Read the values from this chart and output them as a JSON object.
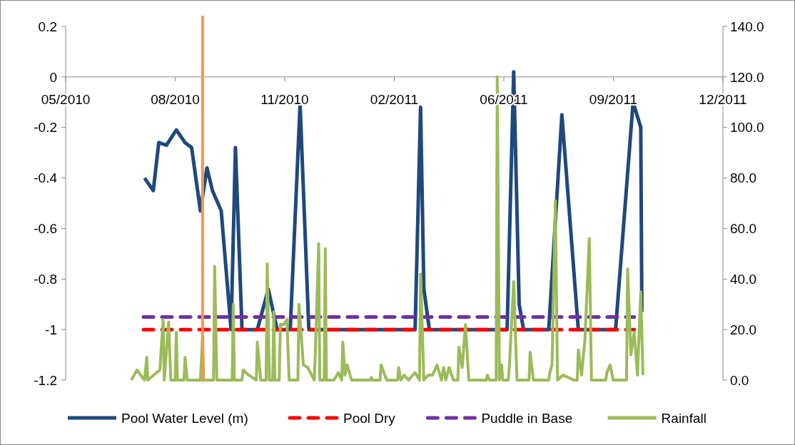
{
  "chart_data": {
    "type": "line",
    "legend": "bottom",
    "xlim": [
      "2010-05-01",
      "2011-12-22"
    ],
    "xticks": [
      {
        "value": "2010-05-01",
        "label": "05/2010"
      },
      {
        "value": "2010-08-09",
        "label": "08/2010"
      },
      {
        "value": "2010-11-17",
        "label": "11/2010"
      },
      {
        "value": "2011-02-25",
        "label": "02/2011"
      },
      {
        "value": "2011-06-05",
        "label": "06/2011"
      },
      {
        "value": "2011-09-13",
        "label": "09/2011"
      },
      {
        "value": "2011-12-22",
        "label": "12/2011"
      }
    ],
    "ylim": [
      -1.2,
      0.2
    ],
    "yticks": [
      -1.2,
      {
        "value": -1,
        "label": "-1"
      },
      -0.8,
      -0.6,
      -0.4,
      -0.2,
      {
        "value": 0,
        "label": "0"
      },
      0.2
    ],
    "y2lim": [
      0,
      140
    ],
    "y2ticks": [
      {
        "value": 0,
        "label": "0.0"
      },
      {
        "value": 20,
        "label": "20.0"
      },
      {
        "value": 40,
        "label": "40.0"
      },
      {
        "value": 60,
        "label": "60.0"
      },
      {
        "value": 80,
        "label": "80.0"
      },
      {
        "value": 100,
        "label": "100.0"
      },
      {
        "value": 120,
        "label": "120.0"
      },
      {
        "value": 140,
        "label": "140.0"
      }
    ],
    "ref_lines": [
      {
        "axis": "x",
        "value": "2010-09-03",
        "color": "#f79646"
      }
    ],
    "series": [
      {
        "name": "Pool Water Level (m)",
        "color": "#1f497d",
        "line_style": "solid",
        "x": [
          "2010-07-12",
          "2010-07-20",
          "2010-07-25",
          "2010-08-01",
          "2010-08-10",
          "2010-08-18",
          "2010-08-24",
          "2010-09-01",
          "2010-09-07",
          "2010-09-12",
          "2010-09-20",
          "2010-09-29",
          "2010-10-03",
          "2010-10-09",
          "2010-10-23",
          "2010-11-02",
          "2010-11-10",
          "2010-11-22",
          "2010-12-01",
          "2010-12-09",
          "2011-03-16",
          "2011-03-21",
          "2011-03-24",
          "2011-03-29",
          "2011-06-08",
          "2011-06-14",
          "2011-06-19",
          "2011-06-23",
          "2011-07-16",
          "2011-07-28",
          "2011-08-12",
          "2011-09-15",
          "2011-10-01",
          "2011-10-08",
          "2011-10-09"
        ],
        "values": [
          -0.4,
          -0.45,
          -0.26,
          -0.27,
          -0.21,
          -0.26,
          -0.28,
          -0.53,
          -0.36,
          -0.45,
          -0.53,
          -1,
          -0.28,
          -1,
          -1,
          -0.84,
          -1,
          -1,
          -0.11,
          -1,
          -1,
          -0.12,
          -0.84,
          -1,
          -1,
          0.02,
          -0.9,
          -1,
          -1,
          -0.15,
          -1,
          -1,
          -0.1,
          -0.2,
          -0.93
        ]
      },
      {
        "name": "Pool Dry",
        "color": "#ff0000",
        "line_style": "dashed",
        "x": [
          "2010-07-11",
          "2011-10-02"
        ],
        "values": [
          -1,
          -1
        ]
      },
      {
        "name": "Puddle in Base",
        "color": "#7030a0",
        "line_style": "dashed",
        "x": [
          "2010-07-11",
          "2011-10-02"
        ],
        "values": [
          -0.95,
          -0.95
        ]
      },
      {
        "name": "Rainfall",
        "color": "#9bbb59",
        "axis": "y2",
        "line_style": "solid",
        "x": [
          "2010-06-30",
          "2010-07-05",
          "2010-07-12",
          "2010-07-14",
          "2010-07-15",
          "2010-07-26",
          "2010-07-29",
          "2010-07-30",
          "2010-08-03",
          "2010-08-05",
          "2010-08-09",
          "2010-08-10",
          "2010-08-11",
          "2010-08-13",
          "2010-08-17",
          "2010-08-18",
          "2010-08-20",
          "2010-09-01",
          "2010-09-03",
          "2010-09-04",
          "2010-09-13",
          "2010-09-14",
          "2010-09-16",
          "2010-09-21",
          "2010-09-30",
          "2010-10-01",
          "2010-10-02",
          "2010-10-05",
          "2010-10-09",
          "2010-10-10",
          "2010-10-15",
          "2010-10-22",
          "2010-10-23",
          "2010-10-26",
          "2010-10-31",
          "2010-11-01",
          "2010-11-03",
          "2010-11-06",
          "2010-11-07",
          "2010-11-08",
          "2010-11-10",
          "2010-11-12",
          "2010-11-13",
          "2010-11-16",
          "2010-11-19",
          "2010-11-21",
          "2010-11-25",
          "2010-11-29",
          "2010-11-30",
          "2010-12-04",
          "2010-12-08",
          "2010-12-14",
          "2010-12-15",
          "2010-12-18",
          "2010-12-19",
          "2010-12-21",
          "2010-12-23",
          "2010-12-24",
          "2010-12-25",
          "2010-12-28",
          "2011-01-01",
          "2011-01-05",
          "2011-01-08",
          "2011-01-09",
          "2011-01-11",
          "2011-01-13",
          "2011-01-17",
          "2011-02-03",
          "2011-02-04",
          "2011-02-05",
          "2011-02-12",
          "2011-02-13",
          "2011-02-18",
          "2011-02-28",
          "2011-03-01",
          "2011-03-03",
          "2011-03-06",
          "2011-03-10",
          "2011-03-16",
          "2011-03-20",
          "2011-03-21",
          "2011-03-24",
          "2011-03-28",
          "2011-04-01",
          "2011-04-05",
          "2011-04-09",
          "2011-04-11",
          "2011-04-13",
          "2011-04-16",
          "2011-04-20",
          "2011-04-24",
          "2011-04-25",
          "2011-04-28",
          "2011-05-01",
          "2011-05-04",
          "2011-05-20",
          "2011-05-21",
          "2011-05-23",
          "2011-05-27",
          "2011-05-29",
          "2011-05-30",
          "2011-06-01",
          "2011-06-03",
          "2011-06-04",
          "2011-06-09",
          "2011-06-10",
          "2011-06-14",
          "2011-06-17",
          "2011-06-28",
          "2011-06-29",
          "2011-07-02",
          "2011-07-16",
          "2011-07-17",
          "2011-07-19",
          "2011-07-22",
          "2011-07-24",
          "2011-07-29",
          "2011-08-08",
          "2011-08-11",
          "2011-08-12",
          "2011-08-15",
          "2011-08-18",
          "2011-08-22",
          "2011-08-24",
          "2011-09-01",
          "2011-09-06",
          "2011-09-07",
          "2011-09-10",
          "2011-09-13",
          "2011-09-23",
          "2011-09-25",
          "2011-09-26",
          "2011-09-29",
          "2011-10-02",
          "2011-10-05",
          "2011-10-08",
          "2011-10-10"
        ],
        "values": [
          0,
          4,
          0,
          9,
          0,
          4,
          24,
          0,
          23,
          0,
          0,
          19,
          0,
          0,
          0,
          9,
          0,
          0,
          17,
          0,
          0,
          45,
          0,
          0,
          0,
          30,
          0,
          0,
          0,
          4,
          2,
          0,
          15,
          0,
          0,
          46,
          0,
          0,
          27,
          0,
          0,
          0,
          22,
          22,
          24,
          0,
          0,
          0,
          30,
          6,
          5,
          0,
          12,
          54,
          0,
          0,
          0,
          52,
          0,
          0,
          0,
          3,
          0,
          15,
          2,
          6,
          0,
          0,
          1,
          0,
          0,
          6,
          0,
          0,
          5,
          0,
          2,
          0,
          3,
          0,
          42,
          0,
          2,
          2,
          6,
          0,
          5,
          0,
          5,
          0,
          0,
          13,
          5,
          22,
          0,
          0,
          2,
          0,
          0,
          0,
          120,
          0,
          6,
          0,
          0,
          5,
          39,
          0,
          0,
          11,
          0,
          0,
          3,
          6,
          71,
          0,
          2,
          0,
          0,
          12,
          2,
          16,
          56,
          0,
          0,
          0,
          3,
          6,
          0,
          0,
          0,
          44,
          10,
          19,
          2,
          35,
          2
        ]
      }
    ]
  }
}
